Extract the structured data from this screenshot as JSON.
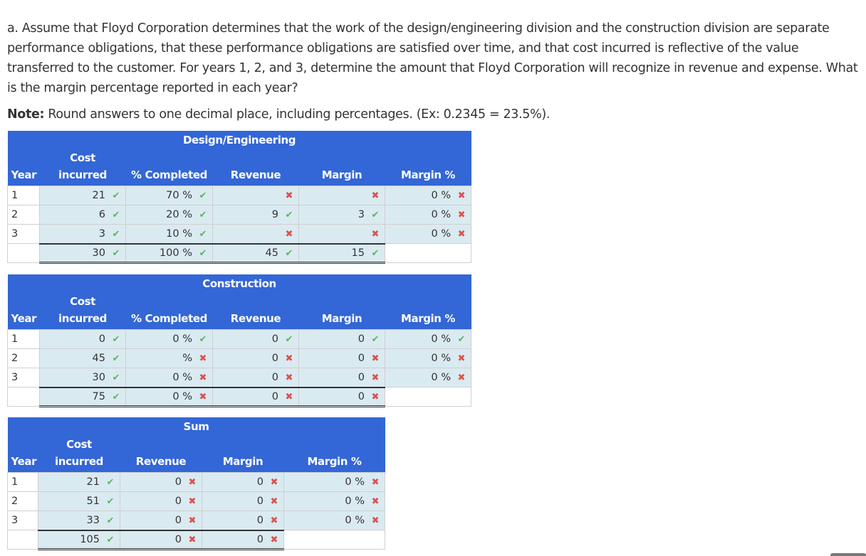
{
  "question": {
    "text": "a. Assume that Floyd Corporation determines that the work of the design/engineering division and the construction division are separate performance obligations, that these performance obligations are satisfied over time, and that cost incurred is reflective of the value transferred to the customer. For years 1, 2, and 3, determine the amount that Floyd Corporation will recognize in revenue and expense. What is the margin percentage reported in each year?",
    "note_label": "Note:",
    "note_text": " Round answers to one decimal place, including percentages.  (Ex: 0.2345 = 23.5%)."
  },
  "marks": {
    "correct": "✔",
    "incorrect": "✖"
  },
  "colors": {
    "header_bg": "#3366d6",
    "cell_bg": "#daeaf1",
    "correct": "#5cb85c",
    "incorrect": "#d9534f"
  },
  "design": {
    "title": "Design/Engineering",
    "headers": {
      "year": "Year",
      "cost_1": "Cost",
      "cost_2": "incurred",
      "pct": "% Completed",
      "revenue": "Revenue",
      "margin": "Margin",
      "margin_pct": "Margin %"
    },
    "rows": [
      {
        "year": "1",
        "cost": "21",
        "cost_mark": "✔",
        "pct": "70 %",
        "pct_mark": "✔",
        "revenue": "",
        "revenue_mark": "✖",
        "margin": "",
        "margin_mark": "✖",
        "margin_pct": "0 %",
        "margin_pct_mark": "✖"
      },
      {
        "year": "2",
        "cost": "6",
        "cost_mark": "✔",
        "pct": "20 %",
        "pct_mark": "✔",
        "revenue": "9",
        "revenue_mark": "✔",
        "margin": "3",
        "margin_mark": "✔",
        "margin_pct": "0 %",
        "margin_pct_mark": "✖"
      },
      {
        "year": "3",
        "cost": "3",
        "cost_mark": "✔",
        "pct": "10 %",
        "pct_mark": "✔",
        "revenue": "",
        "revenue_mark": "✖",
        "margin": "",
        "margin_mark": "✖",
        "margin_pct": "0 %",
        "margin_pct_mark": "✖"
      }
    ],
    "total": {
      "cost": "30",
      "cost_mark": "✔",
      "pct": "100 %",
      "pct_mark": "✔",
      "revenue": "45",
      "revenue_mark": "✔",
      "margin": "15",
      "margin_mark": "✔"
    }
  },
  "construction": {
    "title": "Construction",
    "headers": {
      "year": "Year",
      "cost_1": "Cost",
      "cost_2": "incurred",
      "pct": "% Completed",
      "revenue": "Revenue",
      "margin": "Margin",
      "margin_pct": "Margin %"
    },
    "rows": [
      {
        "year": "1",
        "cost": "0",
        "cost_mark": "✔",
        "pct": "0 %",
        "pct_mark": "✔",
        "revenue": "0",
        "revenue_mark": "✔",
        "margin": "0",
        "margin_mark": "✔",
        "margin_pct": "0 %",
        "margin_pct_mark": "✔"
      },
      {
        "year": "2",
        "cost": "45",
        "cost_mark": "✔",
        "pct": "%",
        "pct_mark": "✖",
        "revenue": "0",
        "revenue_mark": "✖",
        "margin": "0",
        "margin_mark": "✖",
        "margin_pct": "0 %",
        "margin_pct_mark": "✖"
      },
      {
        "year": "3",
        "cost": "30",
        "cost_mark": "✔",
        "pct": "0 %",
        "pct_mark": "✖",
        "revenue": "0",
        "revenue_mark": "✖",
        "margin": "0",
        "margin_mark": "✖",
        "margin_pct": "0 %",
        "margin_pct_mark": "✖"
      }
    ],
    "total": {
      "cost": "75",
      "cost_mark": "✔",
      "pct": "0 %",
      "pct_mark": "✖",
      "revenue": "0",
      "revenue_mark": "✖",
      "margin": "0",
      "margin_mark": "✖"
    }
  },
  "sum": {
    "title": "Sum",
    "headers": {
      "year": "Year",
      "cost_1": "Cost",
      "cost_2": "incurred",
      "revenue": "Revenue",
      "margin": "Margin",
      "margin_pct": "Margin %"
    },
    "rows": [
      {
        "year": "1",
        "cost": "21",
        "cost_mark": "✔",
        "revenue": "0",
        "revenue_mark": "✖",
        "margin": "0",
        "margin_mark": "✖",
        "margin_pct": "0 %",
        "margin_pct_mark": "✖"
      },
      {
        "year": "2",
        "cost": "51",
        "cost_mark": "✔",
        "revenue": "0",
        "revenue_mark": "✖",
        "margin": "0",
        "margin_mark": "✖",
        "margin_pct": "0 %",
        "margin_pct_mark": "✖"
      },
      {
        "year": "3",
        "cost": "33",
        "cost_mark": "✔",
        "revenue": "0",
        "revenue_mark": "✖",
        "margin": "0",
        "margin_mark": "✖",
        "margin_pct": "0 %",
        "margin_pct_mark": "✖"
      }
    ],
    "total": {
      "cost": "105",
      "cost_mark": "✔",
      "revenue": "0",
      "revenue_mark": "✖",
      "margin": "0",
      "margin_mark": "✖"
    }
  }
}
